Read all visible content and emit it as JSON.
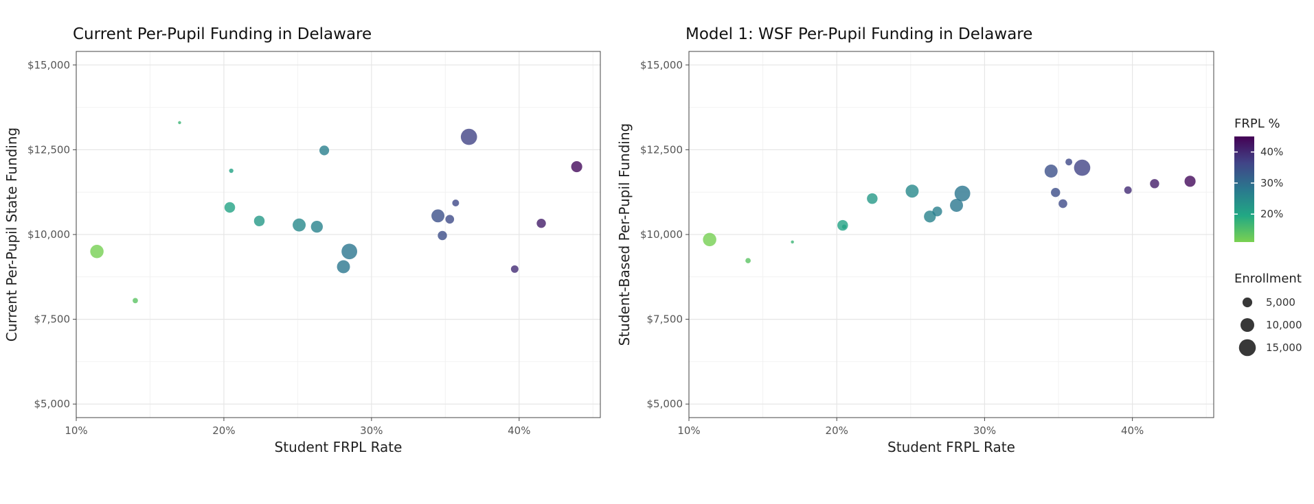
{
  "chart_data": [
    {
      "type": "scatter",
      "title": "Current Per-Pupil Funding in Delaware",
      "xlabel": "Student FRPL Rate",
      "ylabel": "Current Per-Pupil State Funding",
      "xlim": [
        0.1,
        0.455
      ],
      "ylim": [
        4600,
        15400
      ],
      "x_ticks": [
        {
          "value": 0.1,
          "label": "10%"
        },
        {
          "value": 0.2,
          "label": "20%"
        },
        {
          "value": 0.3,
          "label": "30%"
        },
        {
          "value": 0.4,
          "label": "40%"
        }
      ],
      "y_ticks": [
        {
          "value": 5000,
          "label": "$5,000"
        },
        {
          "value": 7500,
          "label": "$7,500"
        },
        {
          "value": 10000,
          "label": "$10,000"
        },
        {
          "value": 12500,
          "label": "$12,500"
        },
        {
          "value": 15000,
          "label": "$15,000"
        }
      ],
      "grid": true,
      "points": [
        {
          "x": 0.114,
          "y": 9500,
          "enrollment": 9500
        },
        {
          "x": 0.14,
          "y": 8050,
          "enrollment": 1500
        },
        {
          "x": 0.17,
          "y": 13300,
          "enrollment": 500
        },
        {
          "x": 0.204,
          "y": 10800,
          "enrollment": 6000
        },
        {
          "x": 0.205,
          "y": 11880,
          "enrollment": 1000
        },
        {
          "x": 0.224,
          "y": 10400,
          "enrollment": 6000
        },
        {
          "x": 0.251,
          "y": 10280,
          "enrollment": 9000
        },
        {
          "x": 0.263,
          "y": 10230,
          "enrollment": 7500
        },
        {
          "x": 0.268,
          "y": 12480,
          "enrollment": 5000
        },
        {
          "x": 0.281,
          "y": 9050,
          "enrollment": 9000
        },
        {
          "x": 0.285,
          "y": 9500,
          "enrollment": 13000
        },
        {
          "x": 0.345,
          "y": 10550,
          "enrollment": 9000
        },
        {
          "x": 0.348,
          "y": 9970,
          "enrollment": 4500
        },
        {
          "x": 0.353,
          "y": 10450,
          "enrollment": 4000
        },
        {
          "x": 0.357,
          "y": 10930,
          "enrollment": 2500
        },
        {
          "x": 0.366,
          "y": 12880,
          "enrollment": 14000
        },
        {
          "x": 0.397,
          "y": 8980,
          "enrollment": 3000
        },
        {
          "x": 0.415,
          "y": 10330,
          "enrollment": 4500
        },
        {
          "x": 0.439,
          "y": 12000,
          "enrollment": 6500
        }
      ]
    },
    {
      "type": "scatter",
      "title": "Model 1: WSF Per-Pupil Funding in Delaware",
      "xlabel": "Student FRPL Rate",
      "ylabel": "Student-Based Per-Pupil Funding",
      "xlim": [
        0.1,
        0.455
      ],
      "ylim": [
        4600,
        15400
      ],
      "x_ticks": [
        {
          "value": 0.1,
          "label": "10%"
        },
        {
          "value": 0.2,
          "label": "20%"
        },
        {
          "value": 0.3,
          "label": "30%"
        },
        {
          "value": 0.4,
          "label": "40%"
        }
      ],
      "y_ticks": [
        {
          "value": 5000,
          "label": "$5,000"
        },
        {
          "value": 7500,
          "label": "$7,500"
        },
        {
          "value": 10000,
          "label": "$10,000"
        },
        {
          "value": 12500,
          "label": "$12,500"
        },
        {
          "value": 15000,
          "label": "$15,000"
        }
      ],
      "grid": true,
      "points": [
        {
          "x": 0.114,
          "y": 9850,
          "enrollment": 9500
        },
        {
          "x": 0.14,
          "y": 9230,
          "enrollment": 1500
        },
        {
          "x": 0.17,
          "y": 9780,
          "enrollment": 500
        },
        {
          "x": 0.204,
          "y": 10270,
          "enrollment": 6000
        },
        {
          "x": 0.205,
          "y": 10230,
          "enrollment": 1000
        },
        {
          "x": 0.224,
          "y": 11060,
          "enrollment": 6000
        },
        {
          "x": 0.251,
          "y": 11280,
          "enrollment": 9000
        },
        {
          "x": 0.263,
          "y": 10530,
          "enrollment": 7500
        },
        {
          "x": 0.268,
          "y": 10680,
          "enrollment": 5000
        },
        {
          "x": 0.281,
          "y": 10860,
          "enrollment": 9000
        },
        {
          "x": 0.285,
          "y": 11210,
          "enrollment": 13000
        },
        {
          "x": 0.345,
          "y": 11870,
          "enrollment": 9000
        },
        {
          "x": 0.348,
          "y": 11240,
          "enrollment": 4500
        },
        {
          "x": 0.353,
          "y": 10910,
          "enrollment": 4000
        },
        {
          "x": 0.357,
          "y": 12140,
          "enrollment": 2500
        },
        {
          "x": 0.366,
          "y": 11970,
          "enrollment": 14000
        },
        {
          "x": 0.397,
          "y": 11310,
          "enrollment": 3000
        },
        {
          "x": 0.415,
          "y": 11500,
          "enrollment": 4500
        },
        {
          "x": 0.439,
          "y": 11570,
          "enrollment": 6500
        }
      ]
    }
  ],
  "legend": {
    "color": {
      "title": "FRPL %",
      "domain": [
        0.11,
        0.45
      ],
      "colors": [
        "#7ad151",
        "#22a884",
        "#2a788e",
        "#414487",
        "#440154"
      ],
      "ticks": [
        {
          "value": 0.2,
          "label": "20%"
        },
        {
          "value": 0.3,
          "label": "30%"
        },
        {
          "value": 0.4,
          "label": "40%"
        }
      ]
    },
    "size": {
      "title": "Enrollment",
      "entries": [
        {
          "value": 5000,
          "label": "5,000"
        },
        {
          "value": 10000,
          "label": "10,000"
        },
        {
          "value": 15000,
          "label": "15,000"
        }
      ]
    }
  }
}
